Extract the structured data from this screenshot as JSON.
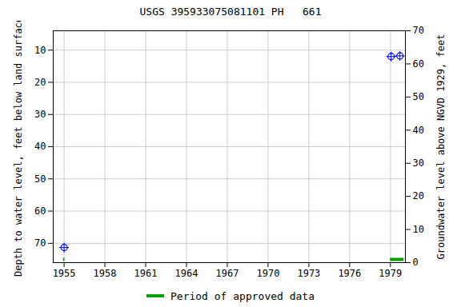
{
  "chart_data": {
    "type": "scatter",
    "title": "USGS 395933075081101 PH   661",
    "y_label": "Depth to water level, feet below land surface",
    "y2_label": "Groundwater level above NGVD 1929, feet",
    "x": [
      1955,
      1979.05,
      1979.7
    ],
    "values": [
      71.3,
      12.0,
      11.8
    ],
    "color": "#0000ff",
    "marker": "circle-plus",
    "xlim": [
      1954.2,
      1980.1
    ],
    "xticks": [
      1955,
      1958,
      1961,
      1964,
      1967,
      1970,
      1973,
      1976,
      1979
    ],
    "ylim": [
      76,
      4
    ],
    "yticks": [
      10,
      20,
      30,
      40,
      50,
      60,
      70
    ],
    "y2lim": [
      0,
      70
    ],
    "y2ticks": [
      0,
      10,
      20,
      30,
      40,
      50,
      60,
      70
    ],
    "grid": true,
    "approved_periods": {
      "name": "Period of approved data",
      "color": "#00a000",
      "ranges": [
        [
          1954.95,
          1955.05
        ],
        [
          1979,
          1980
        ]
      ]
    }
  }
}
